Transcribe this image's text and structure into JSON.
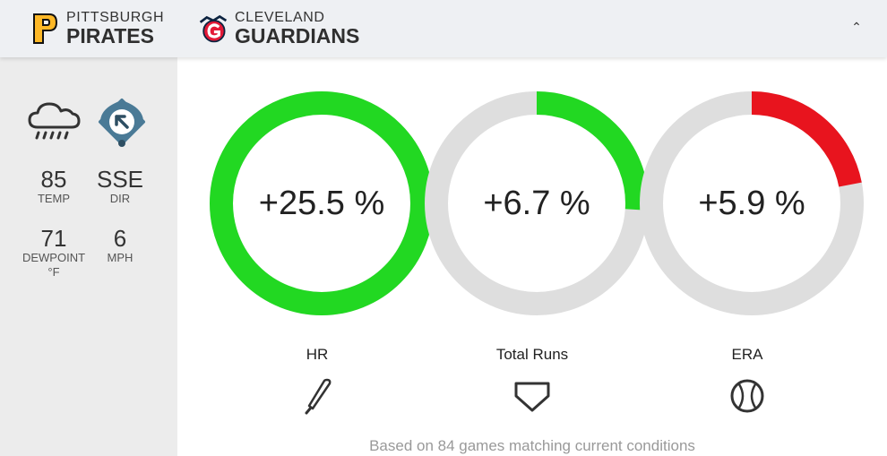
{
  "header": {
    "home": {
      "city": "PITTSBURGH",
      "name": "PIRATES",
      "logo_icon": "pirates-p-logo",
      "logo_color": "#FDB827"
    },
    "away": {
      "city": "CLEVELAND",
      "name": "GUARDIANS",
      "logo_icon": "guardians-g-logo",
      "logo_color": "#E31937"
    },
    "collapse_icon": "chevron-up-icon",
    "collapse_glyph": "⌃"
  },
  "weather": {
    "condition_icon": "rain-cloud-icon",
    "wind_icon": "wind-direction-field-icon",
    "temp": {
      "value": "85",
      "label": "TEMP"
    },
    "dir": {
      "value": "SSE",
      "label": "DIR"
    },
    "dewpoint": {
      "value": "71",
      "label": "DEWPOINT °F"
    },
    "mph": {
      "value": "6",
      "label": "MPH"
    }
  },
  "metrics": [
    {
      "label": "HR",
      "value_text": "+25.5 %",
      "percent": 25.5,
      "fill_fraction": 1.0,
      "color": "#22d822",
      "icon": "bat-icon"
    },
    {
      "label": "Total Runs",
      "value_text": "+6.7 %",
      "percent": 6.7,
      "fill_fraction": 0.26,
      "color": "#22d822",
      "icon": "home-plate-icon"
    },
    {
      "label": "ERA",
      "value_text": "+5.9 %",
      "percent": 5.9,
      "fill_fraction": 0.22,
      "color": "#e8141e",
      "icon": "baseball-icon"
    }
  ],
  "ring_track_color": "#dedede",
  "footer": {
    "note": "Based on 84 games matching current conditions"
  }
}
